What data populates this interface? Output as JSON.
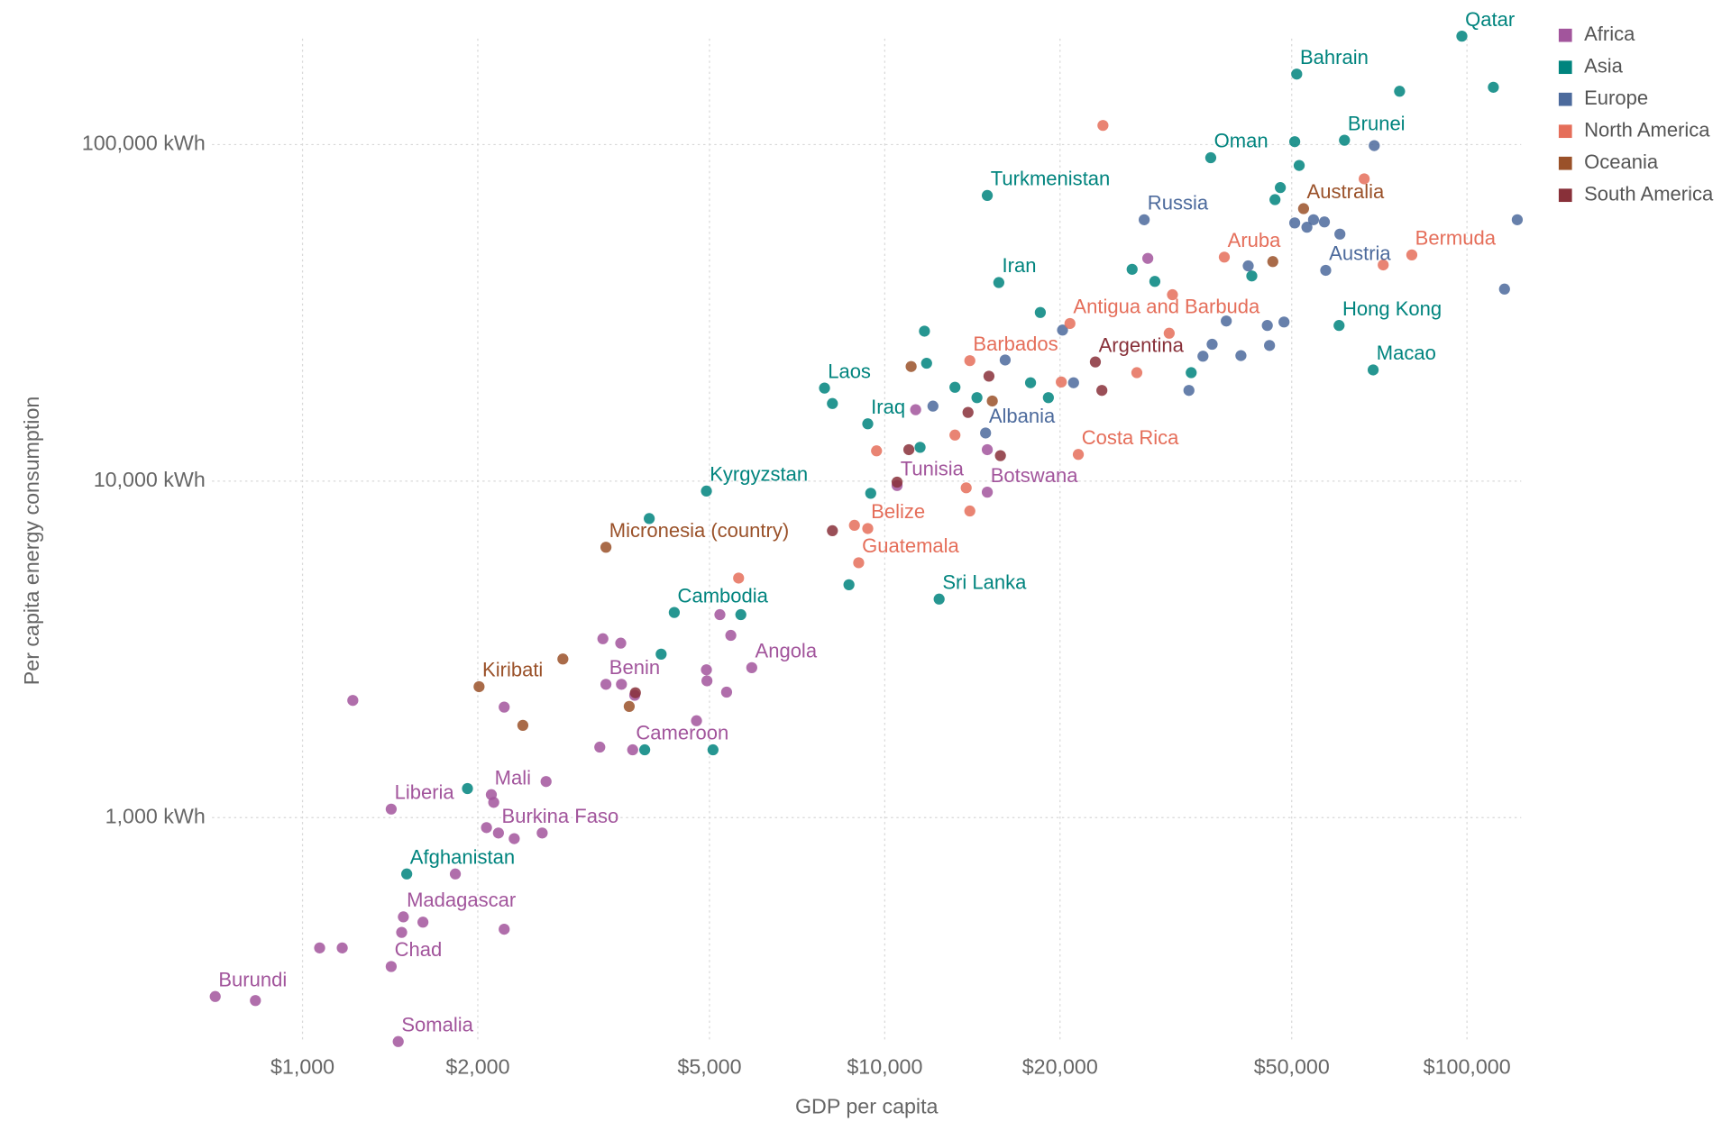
{
  "chart_data": {
    "type": "scatter",
    "x_label": "GDP per capita",
    "y_label": "Per capita energy consumption",
    "log_x": true,
    "log_y": true,
    "grid": true,
    "legend": "top-right",
    "xlim": [
      700,
      125000
    ],
    "ylim": [
      210,
      220000
    ],
    "xticks": [
      {
        "value": 1000,
        "label": "$1,000"
      },
      {
        "value": 2000,
        "label": "$2,000"
      },
      {
        "value": 5000,
        "label": "$5,000"
      },
      {
        "value": 10000,
        "label": "$10,000"
      },
      {
        "value": 20000,
        "label": "$20,000"
      },
      {
        "value": 50000,
        "label": "$50,000"
      },
      {
        "value": 100000,
        "label": "$100,000"
      }
    ],
    "yticks": [
      {
        "value": 1000,
        "label": "1,000 kWh"
      },
      {
        "value": 10000,
        "label": "10,000 kWh"
      },
      {
        "value": 100000,
        "label": "100,000 kWh"
      }
    ],
    "series": [
      {
        "name": "Africa",
        "color": "#a2559c",
        "x": [
          10500,
          15000,
          5910,
          3320,
          3690,
          1420,
          2110,
          2170,
          1490,
          1420,
          708,
          1460,
          1220,
          830,
          1070,
          1170,
          1480,
          1610,
          1830,
          2220,
          2070,
          2310,
          2580,
          2620,
          2130,
          2220,
          3240,
          3280,
          3520,
          3530,
          3720,
          4750,
          4940,
          4950,
          5350,
          5440,
          5210,
          11300,
          15000,
          28300
        ],
        "values": [
          9700,
          9270,
          2790,
          2490,
          1590,
          1060,
          1170,
          900,
          507,
          361,
          294,
          216,
          2230,
          286,
          410,
          410,
          456,
          489,
          680,
          466,
          934,
          866,
          900,
          1280,
          1110,
          2130,
          1620,
          3400,
          3300,
          2490,
          2310,
          1940,
          2750,
          2550,
          2360,
          3480,
          4010,
          16300,
          12400,
          45900
        ],
        "labels": [
          "Tunisia",
          "Botswana",
          "Angola",
          "Benin",
          "Cameroon",
          "Liberia",
          "Mali",
          "Burkina Faso",
          "Madagascar",
          "Chad",
          "Burundi",
          "Somalia",
          null,
          null,
          null,
          null,
          null,
          null,
          null,
          null,
          null,
          null,
          null,
          null,
          null,
          null,
          null,
          null,
          null,
          null,
          null,
          null,
          null,
          null,
          null,
          null,
          null,
          null,
          null,
          null
        ]
      },
      {
        "name": "Asia",
        "color": "#00847e",
        "x": [
          98000,
          51000,
          61600,
          36300,
          15000,
          15700,
          60300,
          69000,
          7880,
          9350,
          4940,
          12400,
          4350,
          1510,
          1920,
          3940,
          4130,
          5070,
          5660,
          3870,
          8130,
          8680,
          9460,
          11500,
          11700,
          11800,
          13200,
          14400,
          17800,
          18500,
          19100,
          26600,
          29100,
          42700,
          46800,
          47800,
          51500,
          76600,
          111000,
          33600,
          50600
        ],
        "values": [
          210000,
          162000,
          103000,
          91400,
          70600,
          38900,
          29000,
          21400,
          18900,
          14800,
          9340,
          4460,
          4070,
          680,
          1220,
          7740,
          3060,
          1590,
          4010,
          1590,
          17000,
          4920,
          9200,
          12600,
          27900,
          22400,
          19000,
          17700,
          19600,
          31700,
          17700,
          42600,
          39200,
          40700,
          68600,
          74500,
          86700,
          144000,
          148000,
          21000,
          102000
        ],
        "labels": [
          "Qatar",
          "Bahrain",
          "Brunei",
          "Oman",
          "Turkmenistan",
          "Iran",
          "Hong Kong",
          "Macao",
          "Laos",
          "Iraq",
          "Kyrgyzstan",
          "Sri Lanka",
          "Cambodia",
          "Afghanistan",
          null,
          null,
          null,
          null,
          null,
          null,
          null,
          null,
          null,
          null,
          null,
          null,
          null,
          null,
          null,
          null,
          null,
          null,
          null,
          null,
          null,
          null,
          null,
          null,
          null,
          null,
          null
        ]
      },
      {
        "name": "Europe",
        "color": "#4c6a9c",
        "x": [
          27900,
          57200,
          14900,
          12100,
          16100,
          20200,
          21100,
          33300,
          35200,
          36500,
          38600,
          40900,
          42100,
          45400,
          45800,
          48500,
          50600,
          53100,
          54500,
          56900,
          60500,
          69300,
          116000,
          122000
        ],
        "values": [
          59800,
          42300,
          13900,
          16700,
          22900,
          28100,
          19600,
          18600,
          23500,
          25500,
          29900,
          23600,
          43600,
          29000,
          25300,
          29700,
          58500,
          56800,
          59800,
          58900,
          54200,
          99300,
          37200,
          59800
        ],
        "labels": [
          "Russia",
          "Austria",
          "Albania",
          null,
          null,
          null,
          null,
          null,
          null,
          null,
          null,
          null,
          null,
          null,
          null,
          null,
          null,
          null,
          null,
          null,
          null,
          null,
          null,
          null
        ]
      },
      {
        "name": "North America",
        "color": "#e56e5a",
        "x": [
          38300,
          80400,
          20800,
          14000,
          21500,
          9350,
          9020,
          23700,
          66600,
          9680,
          8870,
          13200,
          13800,
          14000,
          20100,
          27100,
          31200,
          30800,
          5610,
          71800
        ],
        "values": [
          46300,
          47000,
          29400,
          22800,
          12000,
          7230,
          5720,
          114000,
          79100,
          12300,
          7390,
          13700,
          9550,
          8150,
          19700,
          21000,
          35800,
          27500,
          5150,
          43900
        ],
        "labels": [
          "Aruba",
          "Bermuda",
          "Antigua and Barbuda",
          "Barbados",
          "Costa Rica",
          "Belize",
          "Guatemala",
          null,
          null,
          null,
          null,
          null,
          null,
          null,
          null,
          null,
          null,
          null,
          null,
          null
        ]
      },
      {
        "name": "Oceania",
        "color": "#9a5129",
        "x": [
          52400,
          3320,
          2010,
          2390,
          2800,
          3640,
          11100,
          15300,
          46400
        ],
        "values": [
          64500,
          6360,
          2450,
          1880,
          2960,
          2140,
          21900,
          17300,
          44900
        ],
        "labels": [
          "Australia",
          "Micronesia (country)",
          "Kiribati",
          null,
          null,
          null,
          null,
          null,
          null
        ]
      },
      {
        "name": "South America",
        "color": "#883039",
        "x": [
          23000,
          8130,
          3730,
          11000,
          13900,
          15100,
          15800,
          23600,
          10500
        ],
        "values": [
          22600,
          7120,
          2350,
          12400,
          16000,
          20500,
          11900,
          18600,
          9930
        ],
        "labels": [
          "Argentina",
          null,
          null,
          null,
          null,
          null,
          null,
          null,
          null
        ]
      }
    ]
  }
}
